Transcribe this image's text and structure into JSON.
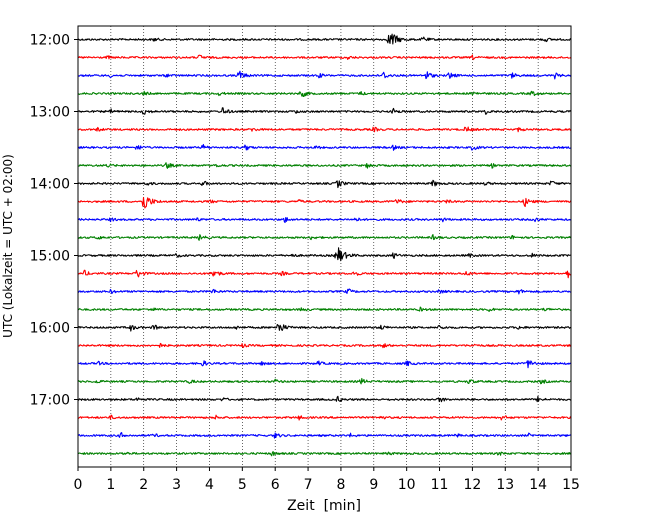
{
  "chart_data": {
    "type": "line",
    "subtype": "helicorder",
    "xlabel": "Zeit  [min]",
    "ylabel": "UTC (Lokalzeit = UTC + 02:00)",
    "xlim": [
      0,
      15
    ],
    "xticks": [
      0,
      1,
      2,
      3,
      4,
      5,
      6,
      7,
      8,
      9,
      10,
      11,
      12,
      13,
      14,
      15
    ],
    "x_grid": "dotted",
    "y_grid": false,
    "line_minutes": 15,
    "trace_colors": [
      "#000000",
      "#ff0000",
      "#0000ff",
      "#008000"
    ],
    "hour_labels": [
      {
        "label": "12:00",
        "line": 0
      },
      {
        "label": "13:00",
        "line": 4
      },
      {
        "label": "14:00",
        "line": 8
      },
      {
        "label": "15:00",
        "line": 12
      },
      {
        "label": "16:00",
        "line": 16
      },
      {
        "label": "17:00",
        "line": 20
      }
    ],
    "series": [
      {
        "line": 0,
        "start": "12:00",
        "events": [
          [
            9.5,
            1.0
          ],
          [
            10.5,
            0.3
          ],
          [
            14.2,
            0.25
          ],
          [
            2.3,
            0.2
          ]
        ]
      },
      {
        "line": 1,
        "start": "12:15",
        "events": [
          [
            3.7,
            0.3
          ],
          [
            0.9,
            0.15
          ],
          [
            8.2,
            0.2
          ],
          [
            12.0,
            0.2
          ]
        ]
      },
      {
        "line": 2,
        "start": "12:30",
        "events": [
          [
            4.9,
            0.55
          ],
          [
            10.6,
            0.5
          ],
          [
            11.3,
            0.4
          ],
          [
            9.3,
            0.4
          ],
          [
            13.2,
            0.3
          ],
          [
            14.5,
            0.3
          ],
          [
            1.0,
            0.2
          ],
          [
            2.7,
            0.2
          ],
          [
            7.3,
            0.3
          ]
        ]
      },
      {
        "line": 3,
        "start": "12:45",
        "events": [
          [
            6.8,
            0.45
          ],
          [
            13.8,
            0.3
          ],
          [
            12.0,
            0.25
          ],
          [
            8.6,
            0.2
          ],
          [
            2.0,
            0.2
          ],
          [
            4.3,
            0.2
          ]
        ]
      },
      {
        "line": 4,
        "start": "13:00",
        "events": [
          [
            2.0,
            0.35
          ],
          [
            4.4,
            0.45
          ],
          [
            9.6,
            0.3
          ],
          [
            12.4,
            0.25
          ],
          [
            1.0,
            0.2
          ],
          [
            6.6,
            0.2
          ]
        ]
      },
      {
        "line": 5,
        "start": "13:15",
        "events": [
          [
            11.8,
            0.35
          ],
          [
            5.3,
            0.2
          ],
          [
            9.0,
            0.25
          ],
          [
            0.6,
            0.2
          ],
          [
            13.4,
            0.2
          ]
        ]
      },
      {
        "line": 6,
        "start": "13:30",
        "events": [
          [
            1.8,
            0.35
          ],
          [
            3.8,
            0.3
          ],
          [
            5.1,
            0.3
          ],
          [
            12.0,
            0.3
          ],
          [
            9.6,
            0.25
          ],
          [
            7.2,
            0.2
          ]
        ]
      },
      {
        "line": 7,
        "start": "13:45",
        "events": [
          [
            2.7,
            0.35
          ],
          [
            0.9,
            0.2
          ],
          [
            4.2,
            0.2
          ],
          [
            8.8,
            0.25
          ],
          [
            12.6,
            0.2
          ]
        ]
      },
      {
        "line": 8,
        "start": "14:00",
        "events": [
          [
            3.8,
            0.3
          ],
          [
            7.9,
            0.45
          ],
          [
            10.8,
            0.35
          ],
          [
            14.4,
            0.3
          ],
          [
            2.1,
            0.2
          ],
          [
            12.4,
            0.2
          ]
        ]
      },
      {
        "line": 9,
        "start": "14:15",
        "events": [
          [
            2.0,
            1.0
          ],
          [
            13.6,
            0.5
          ],
          [
            9.7,
            0.3
          ],
          [
            4.0,
            0.2
          ],
          [
            6.7,
            0.2
          ],
          [
            11.2,
            0.2
          ]
        ]
      },
      {
        "line": 10,
        "start": "14:30",
        "events": [
          [
            6.3,
            0.3
          ],
          [
            8.4,
            0.3
          ],
          [
            1.0,
            0.2
          ],
          [
            11.1,
            0.2
          ],
          [
            13.9,
            0.25
          ],
          [
            3.6,
            0.2
          ]
        ]
      },
      {
        "line": 11,
        "start": "14:45",
        "events": [
          [
            3.7,
            0.3
          ],
          [
            0.6,
            0.2
          ],
          [
            10.8,
            0.25
          ],
          [
            13.2,
            0.2
          ],
          [
            7.1,
            0.2
          ]
        ]
      },
      {
        "line": 12,
        "start": "15:00",
        "events": [
          [
            7.9,
            1.0
          ],
          [
            9.6,
            0.3
          ],
          [
            6.5,
            0.2
          ],
          [
            3.0,
            0.2
          ],
          [
            11.9,
            0.2
          ],
          [
            13.8,
            0.2
          ]
        ]
      },
      {
        "line": 13,
        "start": "15:15",
        "events": [
          [
            1.8,
            0.5
          ],
          [
            4.1,
            0.55
          ],
          [
            8.4,
            0.3
          ],
          [
            11.8,
            0.25
          ],
          [
            14.9,
            0.45
          ],
          [
            0.2,
            0.3
          ],
          [
            6.2,
            0.2
          ]
        ]
      },
      {
        "line": 14,
        "start": "15:30",
        "events": [
          [
            8.2,
            0.3
          ],
          [
            13.4,
            0.3
          ],
          [
            4.1,
            0.25
          ],
          [
            1.0,
            0.2
          ],
          [
            11.0,
            0.2
          ]
        ]
      },
      {
        "line": 15,
        "start": "15:45",
        "events": [
          [
            2.2,
            0.25
          ],
          [
            6.8,
            0.2
          ],
          [
            10.4,
            0.2
          ],
          [
            12.5,
            0.2
          ],
          [
            14.2,
            0.2
          ]
        ]
      },
      {
        "line": 16,
        "start": "16:00",
        "events": [
          [
            6.1,
            0.7
          ],
          [
            1.6,
            0.35
          ],
          [
            2.3,
            0.3
          ],
          [
            9.2,
            0.3
          ],
          [
            11.0,
            0.25
          ],
          [
            13.4,
            0.2
          ],
          [
            4.8,
            0.2
          ]
        ]
      },
      {
        "line": 17,
        "start": "16:15",
        "events": [
          [
            9.3,
            0.25
          ],
          [
            5.0,
            0.2
          ],
          [
            12.0,
            0.2
          ],
          [
            2.5,
            0.2
          ]
        ]
      },
      {
        "line": 18,
        "start": "16:30",
        "events": [
          [
            13.7,
            0.5
          ],
          [
            3.8,
            0.3
          ],
          [
            10.0,
            0.3
          ],
          [
            7.3,
            0.25
          ],
          [
            0.6,
            0.2
          ],
          [
            5.6,
            0.2
          ]
        ]
      },
      {
        "line": 19,
        "start": "16:45",
        "events": [
          [
            8.6,
            0.35
          ],
          [
            11.9,
            0.3
          ],
          [
            0.5,
            0.25
          ],
          [
            3.4,
            0.2
          ],
          [
            6.0,
            0.2
          ],
          [
            14.1,
            0.25
          ]
        ]
      },
      {
        "line": 20,
        "start": "17:00",
        "events": [
          [
            7.9,
            0.3
          ],
          [
            11.0,
            0.3
          ],
          [
            14.0,
            0.3
          ],
          [
            1.8,
            0.2
          ],
          [
            4.4,
            0.2
          ]
        ]
      },
      {
        "line": 21,
        "start": "17:15",
        "events": [
          [
            6.7,
            0.25
          ],
          [
            12.9,
            0.3
          ],
          [
            1.0,
            0.2
          ],
          [
            4.2,
            0.2
          ],
          [
            9.2,
            0.2
          ]
        ]
      },
      {
        "line": 22,
        "start": "17:30",
        "events": [
          [
            1.3,
            0.3
          ],
          [
            6.0,
            0.3
          ],
          [
            2.3,
            0.2
          ],
          [
            8.3,
            0.2
          ],
          [
            11.5,
            0.2
          ],
          [
            13.7,
            0.2
          ]
        ]
      },
      {
        "line": 23,
        "start": "17:45",
        "events": [
          [
            1.4,
            0.2
          ],
          [
            5.9,
            0.25
          ],
          [
            9.4,
            0.2
          ],
          [
            12.8,
            0.2
          ]
        ]
      }
    ]
  }
}
